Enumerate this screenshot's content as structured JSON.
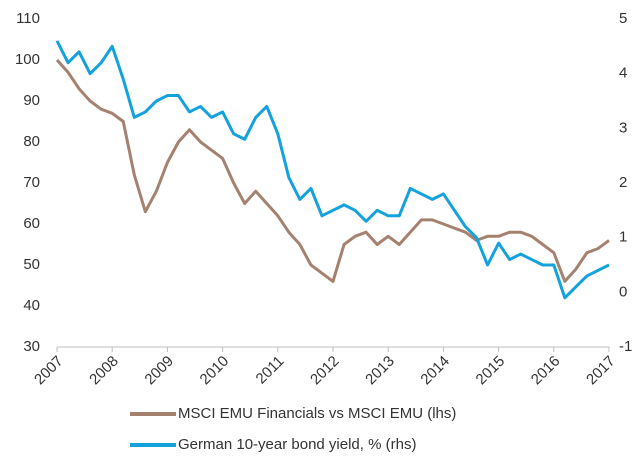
{
  "chart_data": {
    "type": "line",
    "x": [
      2007,
      2007.2,
      2007.4,
      2007.6,
      2007.8,
      2008,
      2008.2,
      2008.4,
      2008.6,
      2008.8,
      2009,
      2009.2,
      2009.4,
      2009.6,
      2009.8,
      2010,
      2010.2,
      2010.4,
      2010.6,
      2010.8,
      2011,
      2011.2,
      2011.4,
      2011.6,
      2011.8,
      2012,
      2012.2,
      2012.4,
      2012.6,
      2012.8,
      2013,
      2013.2,
      2013.4,
      2013.6,
      2013.8,
      2014,
      2014.2,
      2014.4,
      2014.6,
      2014.8,
      2015,
      2015.2,
      2015.4,
      2015.6,
      2015.8,
      2016,
      2016.2,
      2016.4,
      2016.6,
      2016.8,
      2017
    ],
    "series": [
      {
        "name": "MSCI EMU Financials vs MSCI EMU (lhs)",
        "color": "#a58170",
        "values": [
          100,
          97,
          93,
          90,
          88,
          87,
          85,
          72,
          63,
          68,
          75,
          80,
          83,
          80,
          78,
          76,
          70,
          65,
          68,
          65,
          62,
          58,
          55,
          50,
          48,
          46,
          55,
          57,
          58,
          55,
          57,
          55,
          58,
          61,
          61,
          60,
          59,
          58,
          56,
          57,
          57,
          58,
          58,
          57,
          55,
          53,
          46,
          49,
          53,
          54,
          56
        ]
      },
      {
        "name": "German 10-year bond yield, % (rhs)",
        "color": "#13a2dc",
        "axis": "y2",
        "values": [
          4.6,
          4.2,
          4.4,
          4.0,
          4.2,
          4.5,
          3.9,
          3.2,
          3.3,
          3.5,
          3.6,
          3.6,
          3.3,
          3.4,
          3.2,
          3.3,
          2.9,
          2.8,
          3.2,
          3.4,
          2.9,
          2.1,
          1.7,
          1.9,
          1.4,
          1.5,
          1.6,
          1.5,
          1.3,
          1.5,
          1.4,
          1.4,
          1.9,
          1.8,
          1.7,
          1.8,
          1.5,
          1.2,
          1.0,
          0.5,
          0.9,
          0.6,
          0.7,
          0.6,
          0.5,
          0.5,
          -0.1,
          0.1,
          0.3,
          0.4,
          0.5
        ]
      }
    ],
    "xlim": [
      2007,
      2017
    ],
    "xticks": [
      2007,
      2008,
      2009,
      2010,
      2011,
      2012,
      2013,
      2014,
      2015,
      2016,
      2017
    ],
    "ylim": [
      30,
      110
    ],
    "yticks": [
      30,
      40,
      50,
      60,
      70,
      80,
      90,
      100,
      110
    ],
    "y2lim": [
      -1,
      5
    ],
    "y2ticks": [
      -1,
      0,
      1,
      2,
      3,
      4,
      5
    ]
  }
}
